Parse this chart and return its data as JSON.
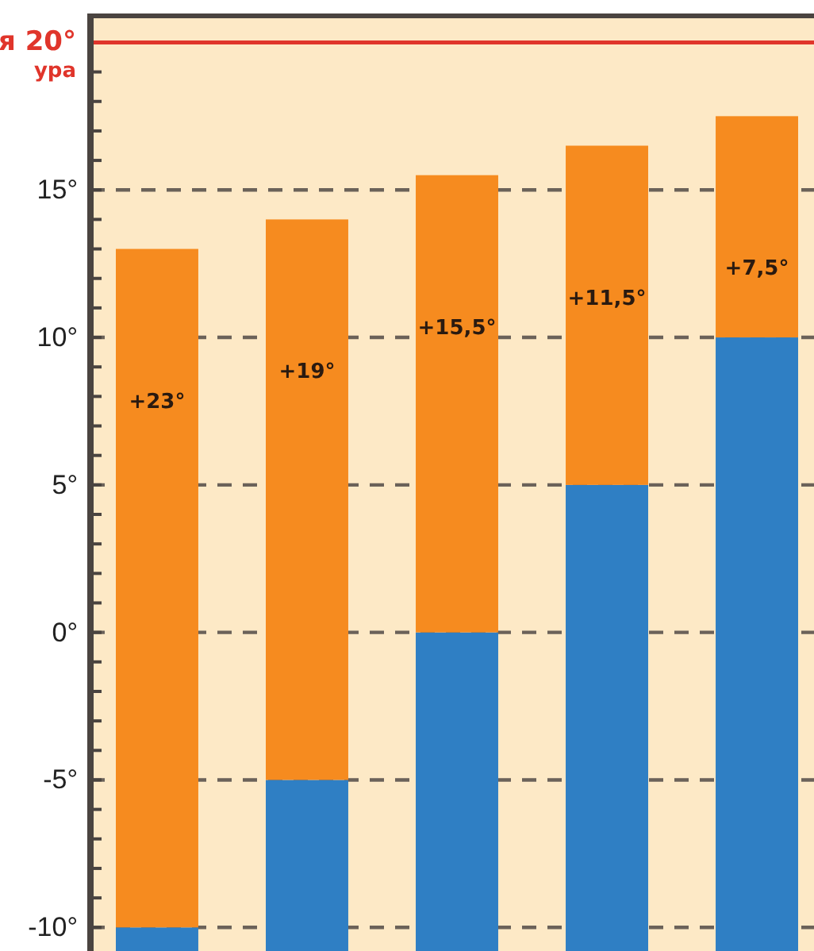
{
  "chart_data": {
    "type": "bar",
    "categories": [
      null,
      null,
      null,
      null,
      null
    ],
    "series": [
      {
        "color": "#2f7fc4",
        "base": [
          -10.8,
          -10.8,
          -10.8,
          -10.8,
          -10.8
        ],
        "values": [
          0.8,
          5.8,
          10.8,
          15.8,
          20.8
        ]
      },
      {
        "color": "#f68b1f",
        "base": [
          -10,
          -5,
          0,
          5,
          10
        ],
        "values": [
          23,
          19,
          15.5,
          11.5,
          7.5
        ],
        "value_labels": [
          "+23°",
          "+19°",
          "+15,5°",
          "+11,5°",
          "+7,5°"
        ]
      }
    ],
    "ylim": [
      -10.8,
      20.9
    ],
    "yticks": [
      {
        "value": -10,
        "label": "-10°"
      },
      {
        "value": -9,
        "label": null
      },
      {
        "value": -8,
        "label": null
      },
      {
        "value": -7,
        "label": null
      },
      {
        "value": -6,
        "label": null
      },
      {
        "value": -5,
        "label": "-5°"
      },
      {
        "value": -4,
        "label": null
      },
      {
        "value": -3,
        "label": null
      },
      {
        "value": -2,
        "label": null
      },
      {
        "value": -1,
        "label": null
      },
      {
        "value": 0,
        "label": "0°"
      },
      {
        "value": 1,
        "label": null
      },
      {
        "value": 2,
        "label": null
      },
      {
        "value": 3,
        "label": null
      },
      {
        "value": 4,
        "label": null
      },
      {
        "value": 5,
        "label": "5°"
      },
      {
        "value": 6,
        "label": null
      },
      {
        "value": 7,
        "label": null
      },
      {
        "value": 8,
        "label": null
      },
      {
        "value": 9,
        "label": null
      },
      {
        "value": 10,
        "label": "10°"
      },
      {
        "value": 11,
        "label": null
      },
      {
        "value": 12,
        "label": null
      },
      {
        "value": 13,
        "label": null
      },
      {
        "value": 14,
        "label": null
      },
      {
        "value": 15,
        "label": "15°"
      },
      {
        "value": 16,
        "label": null
      },
      {
        "value": 17,
        "label": null
      },
      {
        "value": 18,
        "label": null
      },
      {
        "value": 19,
        "label": null
      }
    ],
    "tick_labels": "y",
    "grid": "y",
    "ref_lines": [
      {
        "axis": "y",
        "value": 20,
        "label": "я  20°",
        "color": "#e0352b"
      }
    ],
    "annotations": [
      "ура"
    ]
  }
}
